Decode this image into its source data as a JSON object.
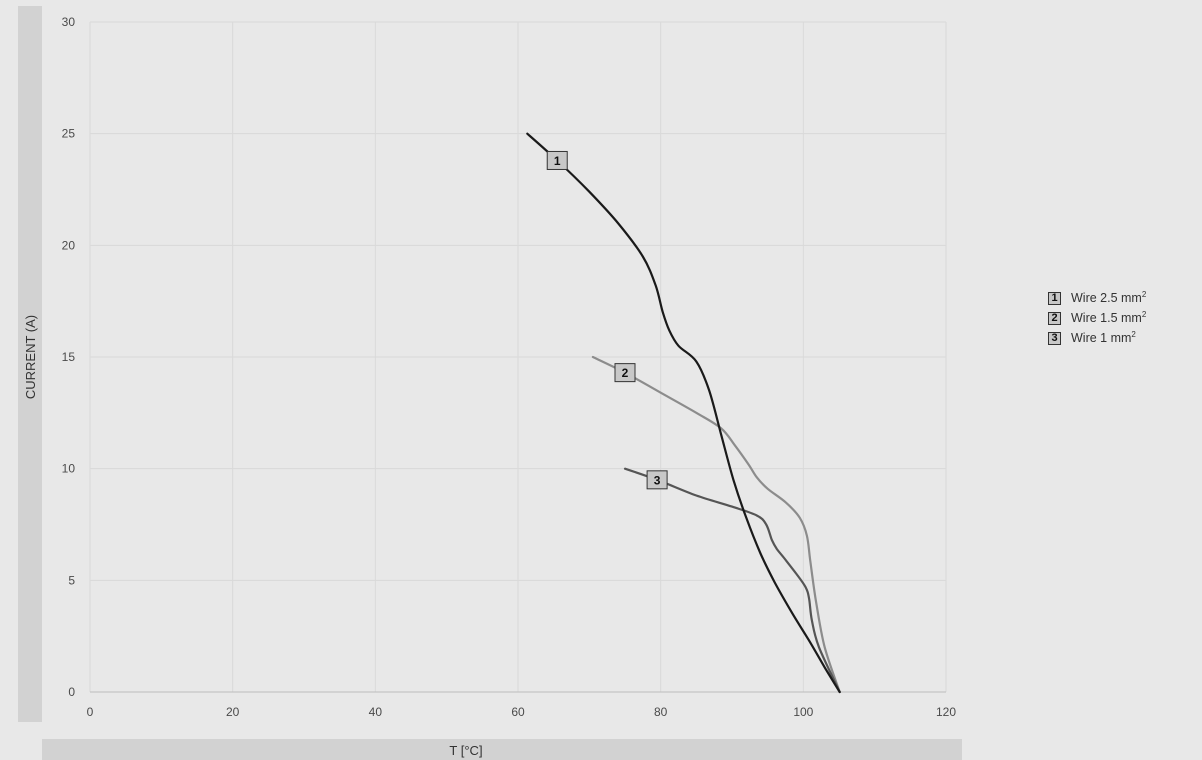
{
  "chart_data": {
    "type": "line",
    "xlabel": "T [°C]",
    "ylabel": "CURRENT (A)",
    "xlim": [
      0,
      120
    ],
    "ylim": [
      0,
      30
    ],
    "xticks": [
      0,
      20,
      40,
      60,
      80,
      100,
      120
    ],
    "yticks": [
      0,
      5,
      10,
      15,
      20,
      25,
      30
    ],
    "grid": true,
    "legend_position": "right",
    "series": [
      {
        "name": "Wire 2.5 mm",
        "marker": "1",
        "color": "#1a1a1a",
        "x": [
          61.3,
          65.5,
          70,
          74,
          77.5,
          79.3,
          80.3,
          81.2,
          82.5,
          85,
          86.8,
          88.5,
          90.2,
          92,
          94,
          96,
          98.5,
          101,
          103,
          105.1
        ],
        "y": [
          25,
          23.8,
          22.4,
          21,
          19.5,
          18.2,
          17,
          16.2,
          15.5,
          14.8,
          13.5,
          11.5,
          9.5,
          7.8,
          6.2,
          4.9,
          3.5,
          2.2,
          1.1,
          0
        ]
      },
      {
        "name": "Wire 1.5 mm",
        "marker": "2",
        "color": "#8c8c8c",
        "x": [
          70.5,
          75,
          80,
          85,
          88.5,
          90.5,
          92.3,
          93.5,
          95,
          97.5,
          99.5,
          100.5,
          101,
          101.8,
          103,
          105.1
        ],
        "y": [
          15,
          14.3,
          13.4,
          12.5,
          11.8,
          11,
          10.2,
          9.6,
          9.1,
          8.5,
          7.8,
          7,
          5.8,
          4,
          2,
          0
        ]
      },
      {
        "name": "Wire 1 mm",
        "marker": "3",
        "color": "#555555",
        "x": [
          75,
          79.5,
          85,
          90,
          93.5,
          94.8,
          95.6,
          96.3,
          97.3,
          99,
          100.3,
          100.8,
          101.2,
          102.2,
          105.1
        ],
        "y": [
          10,
          9.5,
          8.8,
          8.3,
          7.9,
          7.5,
          6.8,
          6.4,
          6,
          5.3,
          4.7,
          4.2,
          3.2,
          2,
          0
        ]
      }
    ],
    "annotations": [
      {
        "label": "1",
        "x": 65.5,
        "y": 23.8
      },
      {
        "label": "2",
        "x": 75,
        "y": 14.3
      },
      {
        "label": "3",
        "x": 79.5,
        "y": 9.5
      }
    ]
  },
  "legend": {
    "items": [
      {
        "badge": "1",
        "label": "Wire 2.5 mm",
        "sup": "2"
      },
      {
        "badge": "2",
        "label": "Wire 1.5 mm",
        "sup": "2"
      },
      {
        "badge": "3",
        "label": "Wire 1 mm",
        "sup": "2"
      }
    ]
  },
  "colors": {
    "background": "#e8e8e8",
    "axis_band": "#d2d2d2",
    "grid": "#d9d9d9",
    "badge_fill": "#c8c8c8"
  }
}
